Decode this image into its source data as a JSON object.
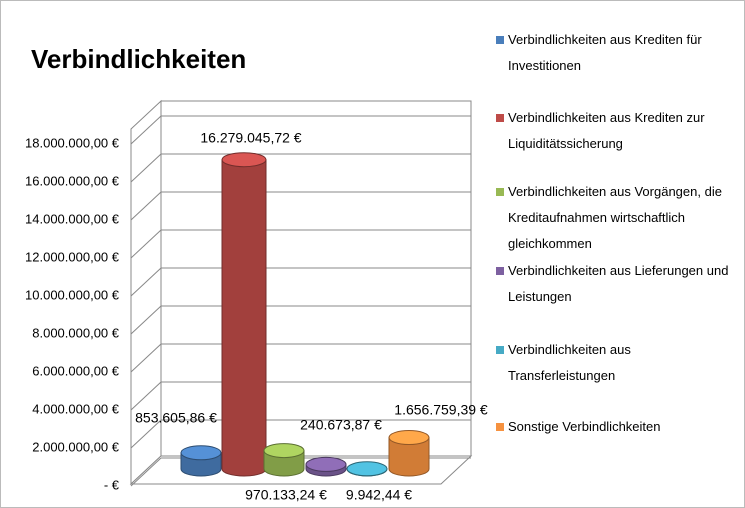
{
  "chart_data": {
    "type": "bar",
    "title": "Verbindlichkeiten",
    "series": [
      {
        "name": "Verbindlichkeiten aus Krediten für Investitionen",
        "color": "#4a7ebb",
        "values": [
          853605.86
        ],
        "value_labels": [
          "853.605,86 €"
        ]
      },
      {
        "name": "Verbindlichkeiten aus Krediten zur Liquiditätssicherung",
        "color": "#be4b48",
        "values": [
          16279045.72
        ],
        "value_labels": [
          "16.279.045,72 €"
        ]
      },
      {
        "name": "Verbindlichkeiten aus Vorgängen, die Kreditaufnahmen wirtschaftlich gleichkommen",
        "color": "#98b954",
        "values": [
          970133.24
        ],
        "value_labels": [
          "970.133,24 €"
        ]
      },
      {
        "name": "Verbindlichkeiten aus Lieferungen und Leistungen",
        "color": "#7d60a0",
        "values": [
          240673.87
        ],
        "value_labels": [
          "240.673,87 €"
        ]
      },
      {
        "name": "Verbindlichkeiten aus Transferleistungen",
        "color": "#46aac5",
        "values": [
          9942.44
        ],
        "value_labels": [
          "9.942,44 €"
        ]
      },
      {
        "name": "Sonstige Verbindlichkeiten",
        "color": "#f69240",
        "values": [
          1656759.39
        ],
        "value_labels": [
          "1.656.759,39 €"
        ]
      }
    ],
    "ylim": [
      0,
      18000000
    ],
    "yticks": [
      {
        "value": 0,
        "label": "-  €"
      },
      {
        "value": 2000000,
        "label": "2.000.000,00 €"
      },
      {
        "value": 4000000,
        "label": "4.000.000,00 €"
      },
      {
        "value": 6000000,
        "label": "6.000.000,00 €"
      },
      {
        "value": 8000000,
        "label": "8.000.000,00 €"
      },
      {
        "value": 10000000,
        "label": "10.000.000,00 €"
      },
      {
        "value": 12000000,
        "label": "12.000.000,00 €"
      },
      {
        "value": 14000000,
        "label": "14.000.000,00 €"
      },
      {
        "value": 16000000,
        "label": "16.000.000,00 €"
      },
      {
        "value": 18000000,
        "label": "18.000.000,00 €"
      }
    ],
    "grid": true
  }
}
